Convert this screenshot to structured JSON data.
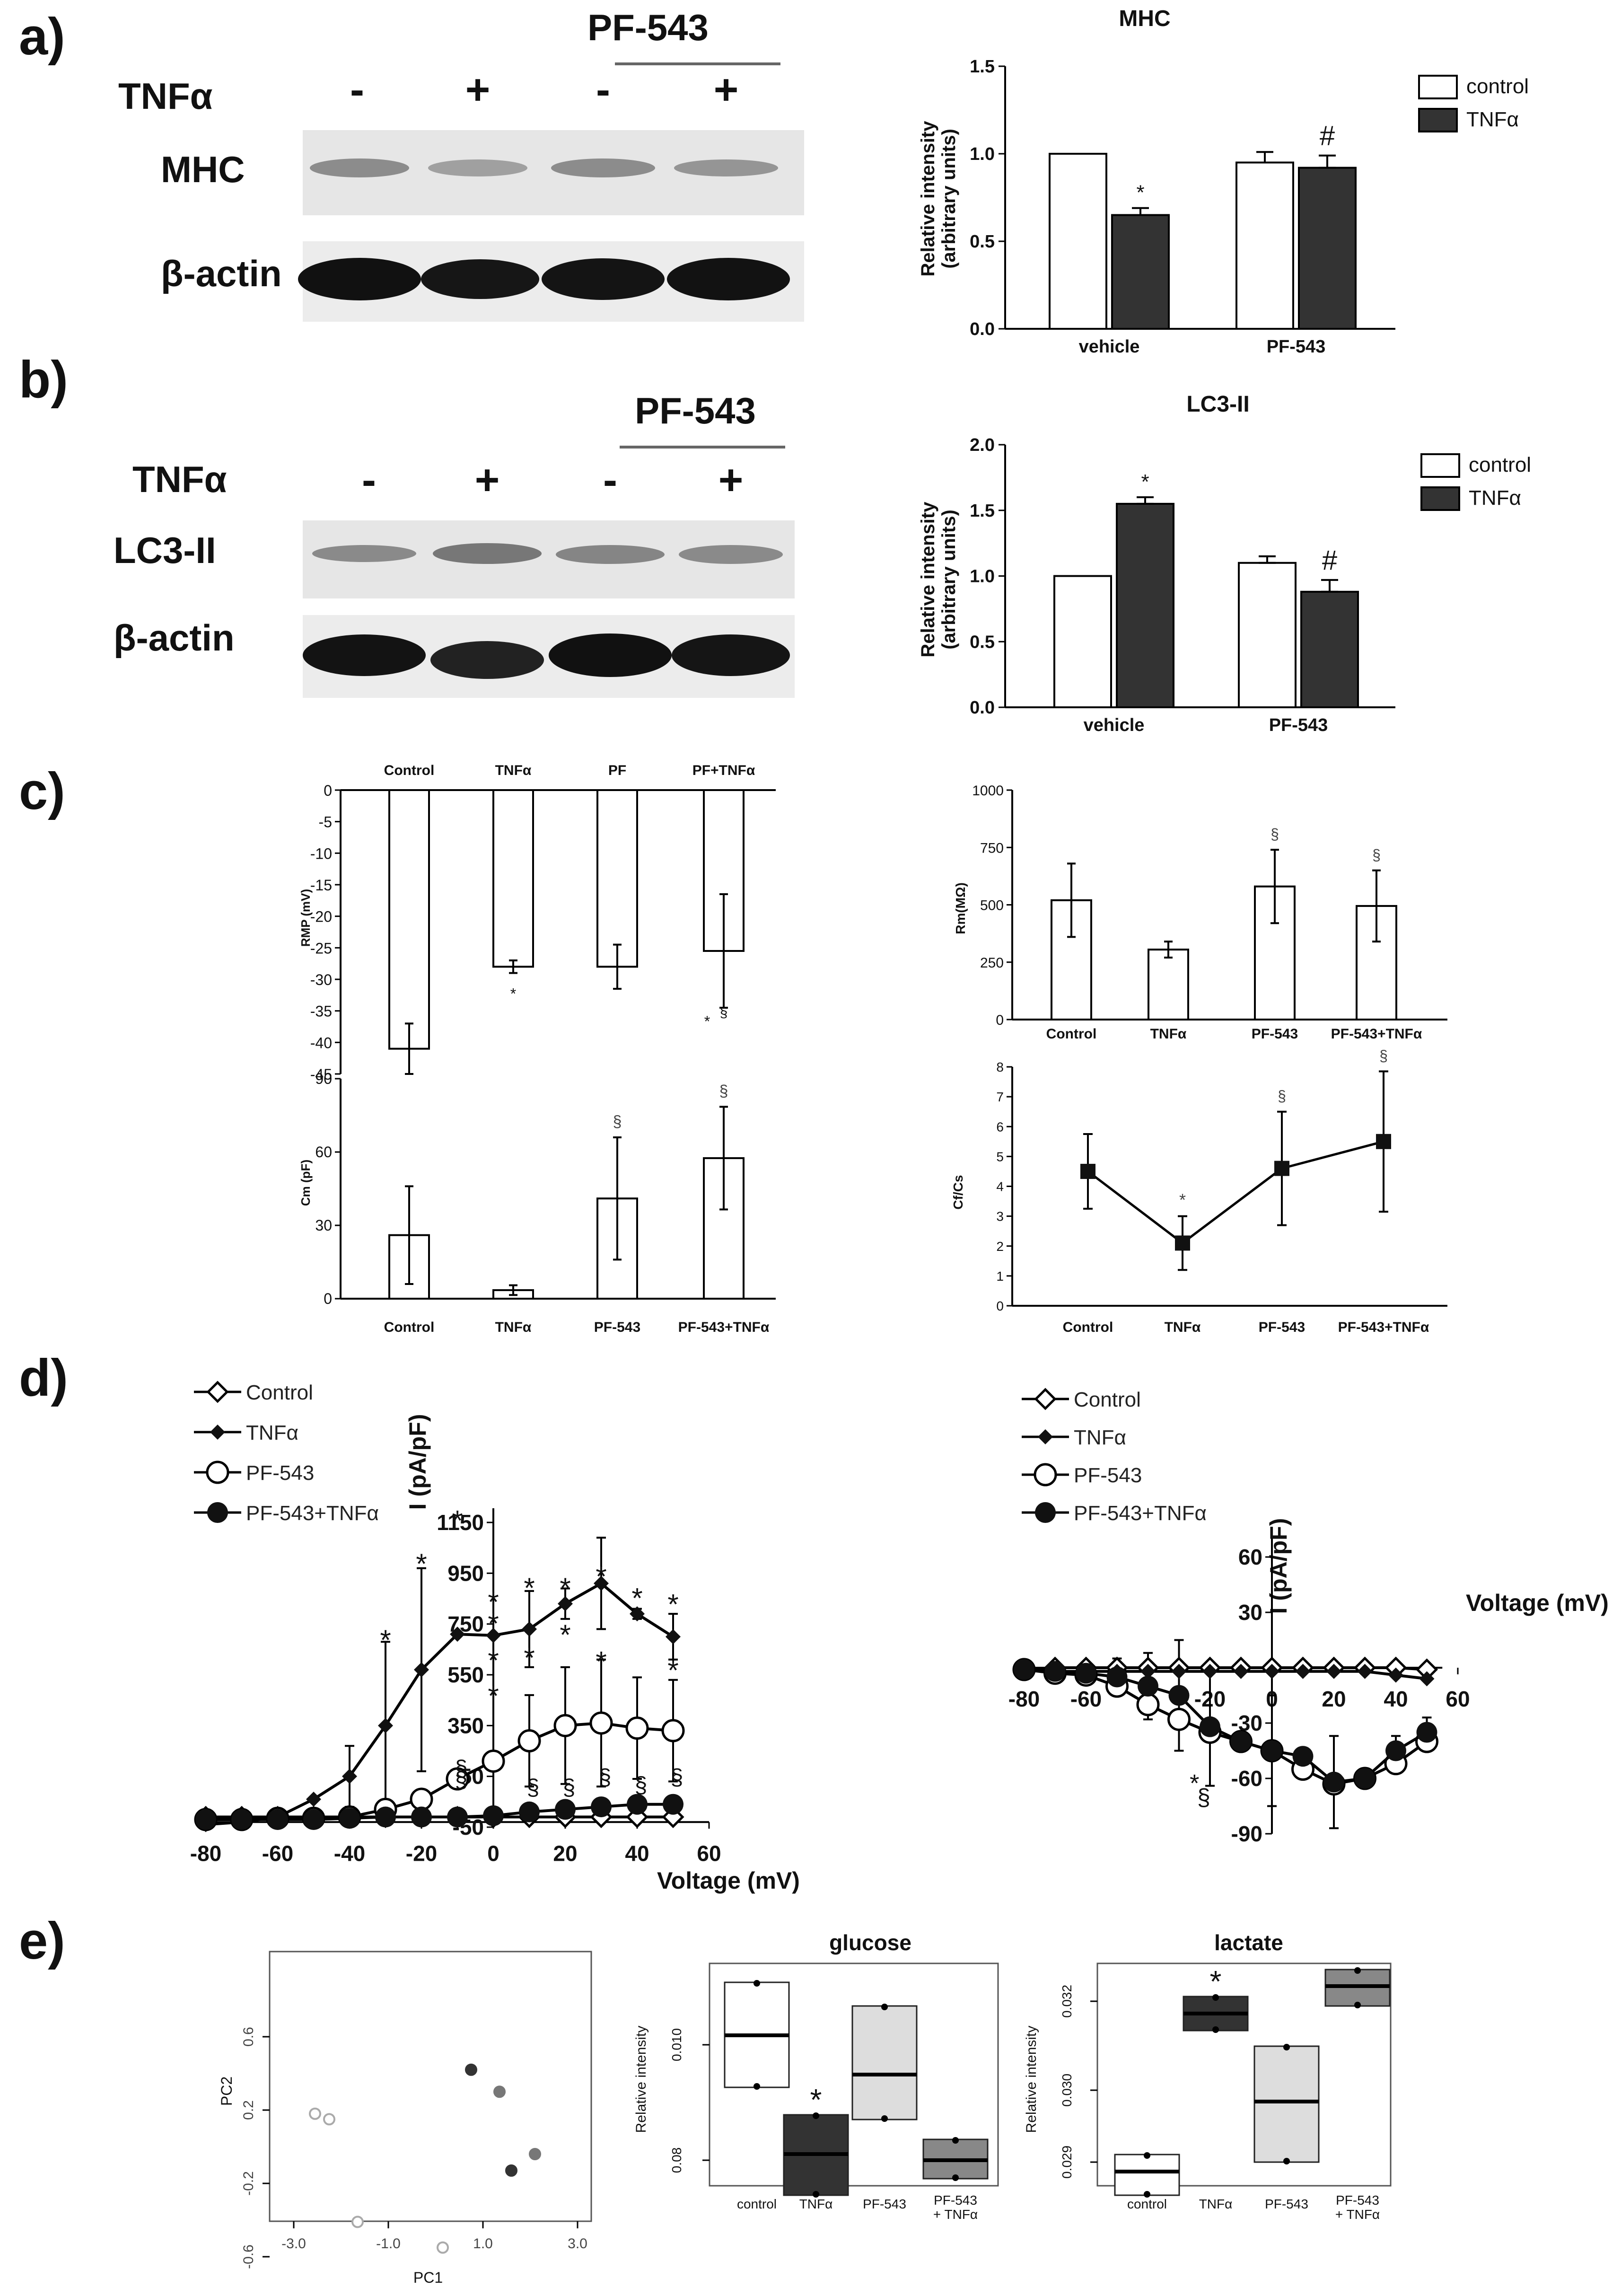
{
  "colors": {
    "control": "#ffffff",
    "tnfa": "#333333",
    "blot_bg": "#e4e4e4",
    "blot_band_dark": "#0f0f0f",
    "blot_band_light": "#8a8a8a"
  },
  "panels": {
    "a": "a)",
    "b": "b)",
    "c": "c)",
    "d": "d)",
    "e": "e)"
  },
  "blots": {
    "a": {
      "drug": "PF-543",
      "tnf_label": "TNFα",
      "signs": [
        "-",
        "+",
        "-",
        "+"
      ],
      "band_labels": [
        "MHC",
        "β-actin"
      ]
    },
    "b": {
      "drug": "PF-543",
      "tnf_label": "TNFα",
      "signs": [
        "-",
        "+",
        "-",
        "+"
      ],
      "band_labels": [
        "LC3-II",
        "β-actin"
      ]
    }
  },
  "legend": {
    "control": "control",
    "tnfa": "TNFα"
  },
  "chart_data": [
    {
      "id": "a_bar",
      "type": "bar",
      "title": "MHC",
      "ylabel": "Relative intensity\n(arbitrary units)",
      "ylim": [
        0,
        1.5
      ],
      "yticks": [
        "0.0",
        "0.5",
        "1.0",
        "1.5"
      ],
      "categories": [
        "vehicle",
        "PF-543"
      ],
      "series": [
        {
          "name": "control",
          "values": [
            1.0,
            0.95
          ],
          "errors": [
            0,
            0.06
          ]
        },
        {
          "name": "TNFα",
          "values": [
            0.65,
            0.92
          ],
          "errors": [
            0.04,
            0.07
          ]
        }
      ],
      "annotations": [
        {
          "text": "*",
          "series": 1,
          "category": 0
        },
        {
          "text": "#",
          "series": 1,
          "category": 1
        }
      ]
    },
    {
      "id": "b_bar",
      "type": "bar",
      "title": "LC3-II",
      "ylabel": "Relative intensity\n(arbitrary units)",
      "ylim": [
        0,
        2.0
      ],
      "yticks": [
        "0.0",
        "0.5",
        "1.0",
        "1.5",
        "2.0"
      ],
      "categories": [
        "vehicle",
        "PF-543"
      ],
      "series": [
        {
          "name": "control",
          "values": [
            1.0,
            1.1
          ],
          "errors": [
            0,
            0.05
          ]
        },
        {
          "name": "TNFα",
          "values": [
            1.55,
            0.88
          ],
          "errors": [
            0.05,
            0.09
          ]
        }
      ],
      "annotations": [
        {
          "text": "*",
          "series": 1,
          "category": 0
        },
        {
          "text": "#",
          "series": 1,
          "category": 1
        }
      ]
    },
    {
      "id": "c_rmp",
      "type": "bar",
      "ylabel": "RMP (mV)",
      "ylim": [
        -45,
        0
      ],
      "yticks": [
        "0",
        "-5",
        "-10",
        "-15",
        "-20",
        "-25",
        "-30",
        "-35",
        "-40",
        "-45"
      ],
      "categories": [
        "Control",
        "TNFα",
        "PF",
        "PF+TNFα"
      ],
      "values": [
        -41,
        -28,
        -28,
        -25.5
      ],
      "errors": [
        4,
        1,
        3.5,
        9
      ],
      "annotations": [
        {
          "text": "*",
          "category": 1
        },
        {
          "text": "*",
          "category": 3
        },
        {
          "text": "§",
          "category": 3
        }
      ]
    },
    {
      "id": "c_cm",
      "type": "bar",
      "ylabel": "Cm (pF)",
      "ylim": [
        0,
        90
      ],
      "yticks": [
        "0",
        "30",
        "60",
        "90"
      ],
      "categories": [
        "Control",
        "TNFα",
        "PF-543",
        "PF-543+TNFα"
      ],
      "values": [
        26,
        3.5,
        41,
        57.5
      ],
      "errors": [
        20,
        2,
        25,
        21
      ],
      "annotations": [
        {
          "text": "§",
          "category": 2
        },
        {
          "text": "§",
          "category": 3
        }
      ]
    },
    {
      "id": "c_rm",
      "type": "bar",
      "ylabel": "Rm(MΩ)",
      "ylim": [
        0,
        1000
      ],
      "yticks": [
        "0",
        "250",
        "500",
        "750",
        "1000"
      ],
      "categories": [
        "Control",
        "TNFα",
        "PF-543",
        "PF-543+TNFα"
      ],
      "values": [
        520,
        305,
        580,
        495
      ],
      "errors": [
        160,
        35,
        160,
        155
      ],
      "annotations": [
        {
          "text": "§",
          "category": 2
        },
        {
          "text": "§",
          "category": 3
        }
      ]
    },
    {
      "id": "c_ratio",
      "type": "line",
      "ylabel": "Cf/Cs",
      "ylim": [
        0,
        8
      ],
      "yticks": [
        "0",
        "1",
        "2",
        "3",
        "4",
        "5",
        "6",
        "7",
        "8"
      ],
      "categories": [
        "Control",
        "TNFα",
        "PF-543",
        "PF-543+TNFα"
      ],
      "values": [
        4.5,
        2.1,
        4.6,
        5.5
      ],
      "errors": [
        1.25,
        0.9,
        1.9,
        2.35
      ],
      "annotations": [
        {
          "text": "*",
          "category": 1
        },
        {
          "text": "§",
          "category": 2
        },
        {
          "text": "§",
          "category": 3
        }
      ]
    },
    {
      "id": "d_left",
      "type": "line",
      "xlabel": "Voltage (mV)",
      "ylabel": "I (pA/pF)",
      "xlim": [
        -80,
        60
      ],
      "ylim": [
        -50,
        1150
      ],
      "xticks": [
        "-80",
        "-60",
        "-40",
        "-20",
        "0",
        "20",
        "40",
        "60"
      ],
      "yticks": [
        "-50",
        "150",
        "350",
        "550",
        "750",
        "950",
        "1150"
      ],
      "legend": [
        "Control",
        "TNFα",
        "PF-543",
        "PF-543+TNFα"
      ],
      "x": [
        -80,
        -70,
        -60,
        -50,
        -40,
        -30,
        -20,
        -10,
        0,
        10,
        20,
        30,
        40,
        50
      ],
      "series": [
        {
          "name": "Control",
          "values": [
            -10,
            -10,
            -10,
            -10,
            -10,
            -10,
            -10,
            -10,
            -10,
            -10,
            -10,
            -10,
            -10,
            -10
          ]
        },
        {
          "name": "TNFα",
          "values": [
            -40,
            -30,
            -10,
            60,
            150,
            350,
            570,
            710,
            705,
            730,
            830,
            910,
            790,
            700
          ],
          "errors": [
            0,
            0,
            0,
            0,
            120,
            330,
            400,
            0,
            0,
            150,
            60,
            180,
            20,
            90
          ]
        },
        {
          "name": "PF-543",
          "values": [
            -20,
            -20,
            -15,
            -15,
            -10,
            20,
            60,
            140,
            210,
            290,
            350,
            360,
            340,
            330
          ],
          "errors": [
            0,
            0,
            0,
            0,
            0,
            0,
            0,
            0,
            0,
            180,
            230,
            250,
            200,
            200
          ]
        },
        {
          "name": "PF-543+TNFα",
          "values": [
            -20,
            -20,
            -20,
            -20,
            -15,
            -10,
            -10,
            -10,
            -5,
            10,
            20,
            30,
            40,
            40
          ],
          "errors": [
            0,
            0,
            0,
            0,
            0,
            0,
            0,
            0,
            0,
            0,
            0,
            0,
            0,
            0
          ]
        }
      ],
      "annotations": [
        "*",
        "*",
        "*",
        "*",
        "*",
        "*",
        "*",
        "*",
        "*",
        "*",
        "*",
        "*",
        "*",
        "*",
        "*",
        "*",
        "§",
        "§",
        "§",
        "§",
        "§",
        "§",
        "§"
      ]
    },
    {
      "id": "d_right",
      "type": "line",
      "xlabel": "Voltage (mV)",
      "ylabel": "I (pA/pF)",
      "xlim": [
        -80,
        60
      ],
      "ylim": [
        -90,
        60
      ],
      "xticks": [
        "-80",
        "-60",
        "-20",
        "0",
        "20",
        "40",
        "60"
      ],
      "yticks": [
        "60",
        "30",
        "-30",
        "-60",
        "-90"
      ],
      "legend": [
        "Control",
        "TNFα",
        "PF-543",
        "PF-543+TNFα"
      ],
      "x": [
        -80,
        -70,
        -60,
        -50,
        -40,
        -30,
        -20,
        -10,
        0,
        10,
        20,
        30,
        40,
        50
      ],
      "series": [
        {
          "name": "Control",
          "values": [
            -1,
            0,
            0,
            0,
            0,
            0,
            0,
            0,
            0,
            0,
            0,
            0,
            0,
            -1
          ]
        },
        {
          "name": "TNFα",
          "values": [
            -1,
            -2,
            -2,
            -2,
            -2,
            -2,
            -2,
            -2,
            -2,
            -2,
            -2,
            -2,
            -4,
            -6
          ]
        },
        {
          "name": "PF-543",
          "values": [
            -1,
            -3,
            -4,
            -10,
            -20,
            -28,
            -35,
            -40,
            -45,
            -55,
            -63,
            -60,
            -52,
            -40
          ]
        },
        {
          "name": "PF-543+TNFα",
          "values": [
            -1,
            -2,
            -3,
            -5,
            -10,
            -15,
            -32,
            -40,
            -45,
            -48,
            -62,
            -60,
            -45,
            -35
          ]
        }
      ],
      "annotations": [
        "*",
        "§"
      ]
    },
    {
      "id": "e_pca",
      "type": "scatter",
      "xlabel": "PC1",
      "ylabel": "PC2",
      "xticks": [
        "-3.0",
        "-1.0",
        "1.0",
        "3.0"
      ],
      "yticks": [
        "0.6",
        "0.2",
        "-0.2",
        "-0.6"
      ],
      "points": [
        {
          "x": -2.55,
          "y": 0.18,
          "group": "control"
        },
        {
          "x": -2.25,
          "y": 0.15,
          "group": "control"
        },
        {
          "x": -1.65,
          "y": -0.41,
          "group": "control"
        },
        {
          "x": 0.15,
          "y": -0.55,
          "group": "PF-543"
        },
        {
          "x": 0.75,
          "y": 0.42,
          "group": "TNFα"
        },
        {
          "x": 1.35,
          "y": 0.3,
          "group": "PF-543+TNFα"
        },
        {
          "x": 2.1,
          "y": -0.04,
          "group": "PF-543+TNFα"
        },
        {
          "x": 1.6,
          "y": -0.13,
          "group": "TNFα"
        }
      ]
    },
    {
      "id": "e_glucose",
      "type": "box",
      "title": "glucose",
      "ylabel": "Relative intensity",
      "yticks": [
        "0.010",
        "0.08"
      ],
      "categories": [
        "control",
        "TNFα",
        "PF-543",
        "PF-543\n+ TNFα"
      ],
      "annotations": [
        {
          "text": "*",
          "category": 1
        }
      ]
    },
    {
      "id": "e_lactate",
      "type": "box",
      "title": "lactate",
      "ylabel": "Relative intensity",
      "yticks": [
        "0.032",
        "0.030",
        "0.029"
      ],
      "categories": [
        "control",
        "TNFα",
        "PF-543",
        "PF-543\n+ TNFα"
      ],
      "annotations": [
        {
          "text": "*",
          "category": 1
        }
      ]
    }
  ]
}
